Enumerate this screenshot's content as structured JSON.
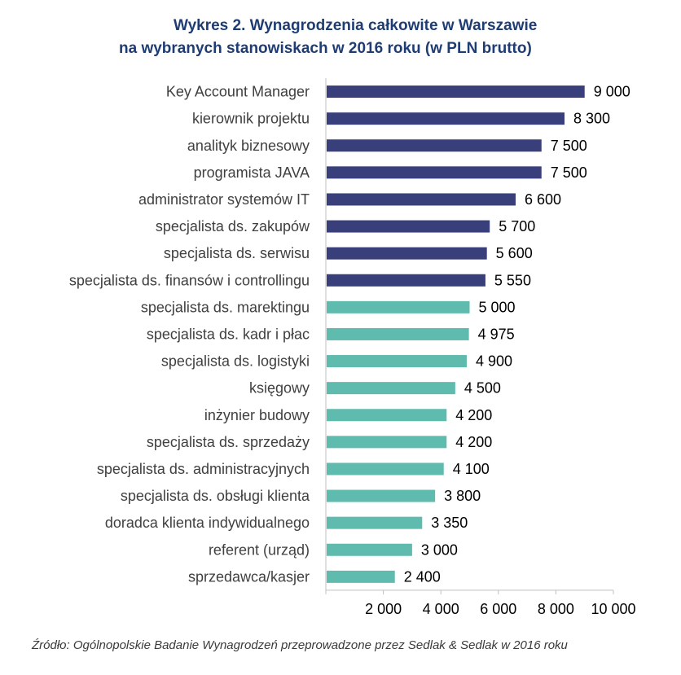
{
  "title_line1": "Wykres 2. Wynagrodzenia całkowite w Warszawie",
  "title_line2": "na wybranych stanowiskach w 2016 roku (w PLN brutto)",
  "source": "Źródło: Ogólnopolskie Badanie Wynagrodzeń przeprowadzone przez Sedlak & Sedlak w 2016 roku",
  "colors": {
    "highlight": "#383f7a",
    "standard": "#5fbbad",
    "axis": "#bfbfbf",
    "label": "#404040"
  },
  "chart_data": {
    "type": "bar",
    "orientation": "horizontal",
    "categories": [
      "Key Account Manager",
      "kierownik projektu",
      "analityk biznesowy",
      "programista JAVA",
      "administrator systemów IT",
      "specjalista ds. zakupów",
      "specjalista ds. serwisu",
      "specjalista ds. finansów i controllingu",
      "specjalista ds. marektingu",
      "specjalista ds. kadr i płac",
      "specjalista ds. logistyki",
      "księgowy",
      "inżynier budowy",
      "specjalista ds. sprzedaży",
      "specjalista ds. administracyjnych",
      "specjalista ds. obsługi klienta",
      "doradca klienta indywidualnego",
      "referent (urząd)",
      "sprzedawca/kasjer"
    ],
    "values": [
      9000,
      8300,
      7500,
      7500,
      6600,
      5700,
      5600,
      5550,
      5000,
      4975,
      4900,
      4500,
      4200,
      4200,
      4100,
      3800,
      3350,
      3000,
      2400
    ],
    "value_labels": [
      "9 000",
      "8 300",
      "7 500",
      "7 500",
      "6 600",
      "5 700",
      "5 600",
      "5 550",
      "5 000",
      "4 975",
      "4 900",
      "4 500",
      "4 200",
      "4 200",
      "4 100",
      "3 800",
      "3 350",
      "3 000",
      "2 400"
    ],
    "bar_colors": [
      "highlight",
      "highlight",
      "highlight",
      "highlight",
      "highlight",
      "highlight",
      "highlight",
      "highlight",
      "standard",
      "standard",
      "standard",
      "standard",
      "standard",
      "standard",
      "standard",
      "standard",
      "standard",
      "standard",
      "standard"
    ],
    "x_ticks": [
      2000,
      4000,
      6000,
      8000,
      10000
    ],
    "x_tick_labels": [
      "2 000",
      "4 000",
      "6 000",
      "8 000",
      "10 000"
    ],
    "xlim": [
      0,
      10000
    ],
    "grid": false,
    "legend": "none"
  }
}
